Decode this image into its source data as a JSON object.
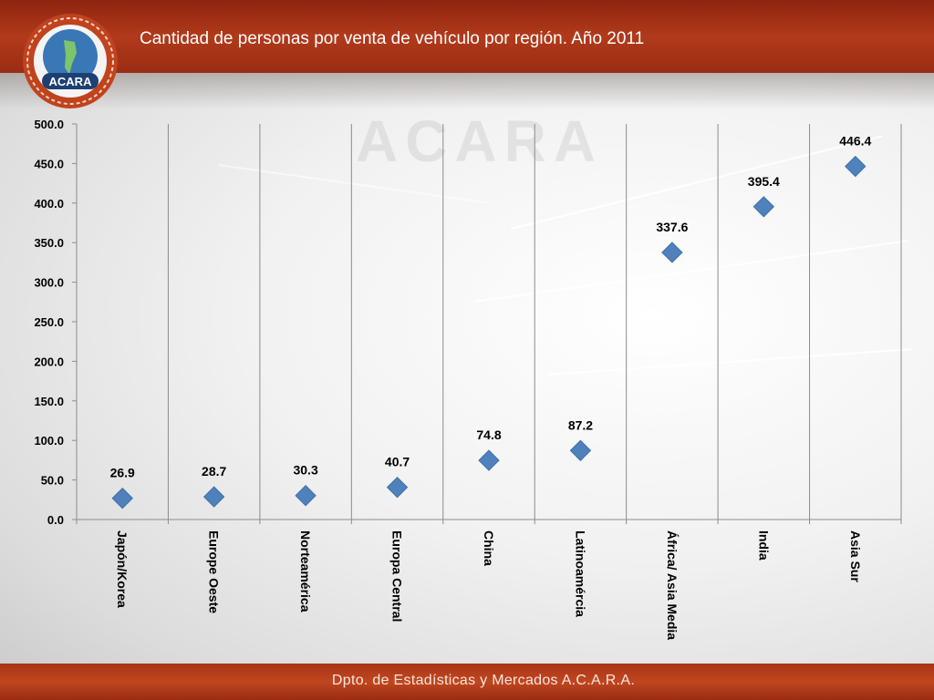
{
  "header": {
    "title": "Cantidad de personas por venta de vehículo por región. Año 2011"
  },
  "logo": {
    "text": "ACARA"
  },
  "footer": {
    "text": "Dpto. de Estadísticas y Mercados A.C.A.R.A."
  },
  "chart_data": {
    "type": "scatter",
    "title": "Cantidad de personas por venta de vehículo por región. Año 2011",
    "categories": [
      "Japón/Korea",
      "Europe Oeste",
      "Norteamérica",
      "Europa Central",
      "China",
      "Latinoamércia",
      "África/ Asia Media",
      "India",
      "Asia Sur"
    ],
    "values": [
      26.9,
      28.7,
      30.3,
      40.7,
      74.8,
      87.2,
      337.6,
      395.4,
      446.4
    ],
    "data_labels": [
      "26.9",
      "28.7",
      "30.3",
      "40.7",
      "74.8",
      "87.2",
      "337.6",
      "395.4",
      "446.4"
    ],
    "y_ticks": [
      "0.0",
      "50.0",
      "100.0",
      "150.0",
      "200.0",
      "250.0",
      "300.0",
      "350.0",
      "400.0",
      "450.0",
      "500.0"
    ],
    "ylim": [
      0,
      500
    ],
    "marker": "diamond",
    "marker_color": "#4f81bd",
    "grid": "vertical",
    "legend": "none"
  }
}
